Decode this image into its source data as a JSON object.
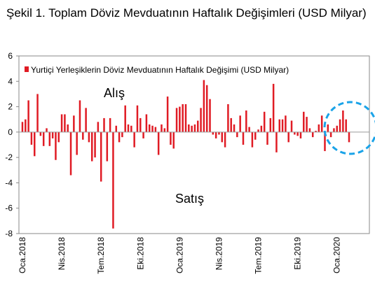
{
  "chart_data": {
    "type": "bar",
    "title": "Şekil 1. Toplam Döviz Mevduatının Haftalık Değişimleri (USD Milyar)",
    "series": [
      {
        "name": "Yurtiçi Yerleşiklerin Döviz Mevduatının Haftalık Değişimi (USD Milyar)",
        "color": "#e01b24",
        "values": [
          0.8,
          1.0,
          2.5,
          -1.0,
          -1.9,
          3.0,
          -0.3,
          -1.1,
          0.3,
          -1.1,
          -0.5,
          -2.2,
          -0.8,
          1.4,
          1.4,
          0.6,
          -3.4,
          1.3,
          -1.8,
          2.5,
          -0.6,
          1.9,
          -0.8,
          -2.3,
          -2.0,
          0.8,
          -3.9,
          1.1,
          -2.3,
          1.1,
          -7.6,
          0.5,
          -0.8,
          -0.4,
          2.1,
          0.6,
          0.5,
          -1.2,
          2.1,
          1.1,
          -0.5,
          1.4,
          0.6,
          0.5,
          0.4,
          -1.8,
          0.6,
          0.3,
          2.8,
          -1.0,
          -1.3,
          1.9,
          2.0,
          2.2,
          2.2,
          0.6,
          0.5,
          0.6,
          0.9,
          1.9,
          4.1,
          3.7,
          2.6,
          -0.2,
          -0.5,
          -0.2,
          -0.8,
          -1.2,
          2.2,
          1.1,
          0.6,
          -0.4,
          1.3,
          -1.0,
          1.7,
          0.4,
          -1.2,
          -0.6,
          0.2,
          0.5,
          1.6,
          -1.0,
          1.1,
          3.8,
          -1.6,
          1.0,
          1.0,
          1.3,
          -0.8,
          0.9,
          -0.2,
          -0.3,
          -0.5,
          1.6,
          1.2,
          0.3,
          -0.4,
          0.1,
          0.6,
          1.3,
          -1.5,
          0.6,
          -0.4,
          0.3,
          0.5,
          1.0,
          1.7,
          1.0,
          -0.8
        ]
      }
    ],
    "ylim": [
      -8,
      6
    ],
    "yticks": [
      6,
      4,
      2,
      0,
      -2,
      -4,
      -6,
      -8
    ],
    "xlabels": [
      "Oca.2018",
      "Nis.2018",
      "Tem.2018",
      "Eki.2018",
      "Oca.2019",
      "Nis.2019",
      "Tem.2019",
      "Eki.2019",
      "Oca.2020"
    ],
    "xlabel_index": [
      0,
      13,
      26,
      39,
      52,
      65,
      78,
      91,
      104
    ],
    "annotations": {
      "buy": "Alış",
      "sell": "Satış"
    },
    "legend_position": "top",
    "grid": false,
    "highlight": {
      "shape": "dashed-circle",
      "color": "#1aa3e8",
      "around": "latest-weeks"
    }
  }
}
